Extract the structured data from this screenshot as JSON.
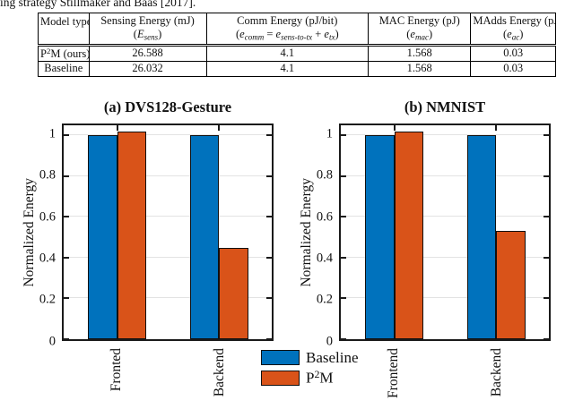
{
  "citation_text": "ing strategy Stillmaker and Baas [2017].",
  "colors": {
    "baseline_blue": "#0072BD",
    "p2m_orange": "#D95319",
    "grid": "#E3E3E3",
    "axis": "#1A1A1A"
  },
  "table": {
    "columns": [
      {
        "title": "Model type",
        "sub_parts": []
      },
      {
        "title": "Sensing Energy (mJ)",
        "sub_parts": [
          {
            "t": "("
          },
          {
            "t": "E",
            "i": true
          },
          {
            "t": "sens",
            "i": true,
            "sub": true
          },
          {
            "t": ")"
          }
        ]
      },
      {
        "title": "Comm Energy (pJ/bit)",
        "sub_parts": [
          {
            "t": "("
          },
          {
            "t": "e",
            "i": true
          },
          {
            "t": "comm",
            "i": true,
            "sub": true
          },
          {
            "t": " = "
          },
          {
            "t": "e",
            "i": true
          },
          {
            "t": "sens-to-tx",
            "i": true,
            "sub": true
          },
          {
            "t": " + "
          },
          {
            "t": "e",
            "i": true
          },
          {
            "t": "tx",
            "i": true,
            "sub": true
          },
          {
            "t": ")"
          }
        ]
      },
      {
        "title": "MAC Energy (pJ)",
        "sub_parts": [
          {
            "t": "("
          },
          {
            "t": "e",
            "i": true
          },
          {
            "t": "mac",
            "i": true,
            "sub": true
          },
          {
            "t": ")"
          }
        ]
      },
      {
        "title": "MAdds Energy (pJ)",
        "sub_parts": [
          {
            "t": "("
          },
          {
            "t": "e",
            "i": true
          },
          {
            "t": "ac",
            "i": true,
            "sub": true
          },
          {
            "t": ")"
          }
        ]
      }
    ],
    "rows": [
      {
        "model_parts": [
          {
            "t": "P"
          },
          {
            "t": "2",
            "sup": true
          },
          {
            "t": "M (ours)"
          }
        ],
        "values": [
          "26.588",
          "4.1",
          "1.568",
          "0.03"
        ]
      },
      {
        "model_parts": [
          {
            "t": "Baseline"
          }
        ],
        "values": [
          "26.032",
          "4.1",
          "1.568",
          "0.03"
        ]
      }
    ]
  },
  "chart_data": [
    {
      "type": "bar",
      "title": "(a) DVS128-Gesture",
      "categories": [
        "Fronted",
        "Backend"
      ],
      "series": [
        {
          "name": "Baseline",
          "color": "#0072BD",
          "values": [
            1.0,
            1.0
          ]
        },
        {
          "name": "P2M",
          "color": "#D95319",
          "values": [
            1.02,
            0.45
          ]
        }
      ],
      "xlabel": "",
      "ylabel": "Normalized Energy",
      "yticks": [
        0,
        0.2,
        0.4,
        0.6,
        0.8,
        1
      ],
      "ylim": [
        0,
        1.05
      ],
      "grid": true,
      "legend_position": "below-between-charts"
    },
    {
      "type": "bar",
      "title": "(b) NMNIST",
      "categories": [
        "Frontend",
        "Backend"
      ],
      "series": [
        {
          "name": "Baseline",
          "color": "#0072BD",
          "values": [
            1.0,
            1.0
          ]
        },
        {
          "name": "P2M",
          "color": "#D95319",
          "values": [
            1.02,
            0.53
          ]
        }
      ],
      "xlabel": "",
      "ylabel": "Normalized Energy",
      "yticks": [
        0,
        0.2,
        0.4,
        0.6,
        0.8,
        1
      ],
      "ylim": [
        0,
        1.05
      ],
      "grid": true,
      "legend_position": "shared"
    }
  ],
  "legend": {
    "items": [
      {
        "color": "#0072BD",
        "label_parts": [
          {
            "t": "Baseline"
          }
        ]
      },
      {
        "color": "#D95319",
        "label_parts": [
          {
            "t": "P"
          },
          {
            "t": "2",
            "sup": true
          },
          {
            "t": "M"
          }
        ]
      }
    ]
  }
}
